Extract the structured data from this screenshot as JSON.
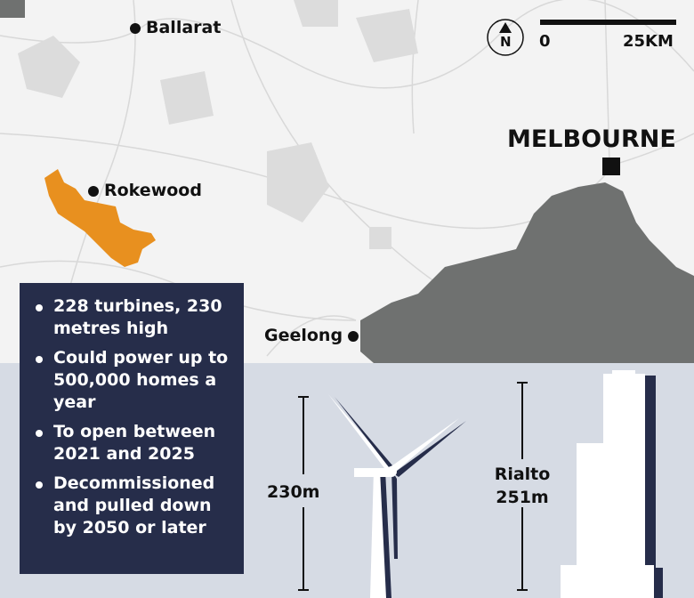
{
  "map": {
    "places": {
      "ballarat": "Ballarat",
      "rokewood": "Rokewood",
      "geelong": "Geelong",
      "melbourne": "MELBOURNE"
    },
    "north_label": "N",
    "scale": {
      "start": "0",
      "end": "25KM"
    },
    "colors": {
      "land": "#f3f3f3",
      "water": "#6f7170",
      "wind_farm": "#e8901f",
      "info_box": "#262d4a",
      "comparison_bg": "#d6dbe4"
    }
  },
  "info": {
    "items": [
      "228 turbines, 230 metres high",
      "Could power up to 500,000 homes a year",
      "To open between 2021 and 2025",
      "Decommissioned and pulled down by 2050 or later"
    ]
  },
  "comparison": {
    "turbine_height": "230m",
    "building_name": "Rialto",
    "building_height": "251m"
  }
}
